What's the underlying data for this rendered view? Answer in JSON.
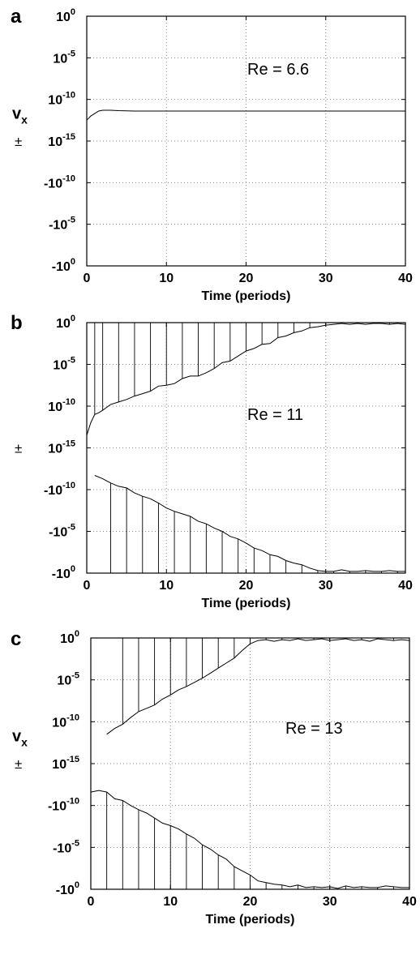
{
  "chart_data": [
    {
      "panel": "a",
      "type": "line",
      "annotation": "Re = 6.6",
      "ylabel": "v",
      "ylabel_sub": "x",
      "ylabel_pm": "±",
      "xlabel": "Time (periods)",
      "xlim": [
        0,
        40
      ],
      "xticks": [
        "0",
        "10",
        "20",
        "30",
        "40"
      ],
      "yticks": [
        {
          "base": "10",
          "exp": "0"
        },
        {
          "base": "10",
          "exp": "-5"
        },
        {
          "base": "10",
          "exp": "-10"
        },
        {
          "base": "10",
          "exp": "-15"
        },
        {
          "base": "-10",
          "exp": "-10"
        },
        {
          "base": "-10",
          "exp": "-5"
        },
        {
          "base": "-10",
          "exp": "0"
        }
      ],
      "grid": true,
      "series": [
        {
          "x": [
            0,
            0.5,
            1,
            1.5,
            2,
            3,
            4,
            6,
            8,
            10,
            15,
            20,
            25,
            30,
            35,
            40
          ],
          "y": [
            -12.5,
            -12,
            -11.7,
            -11.4,
            -11.3,
            -11.3,
            -11.35,
            -11.4,
            -11.4,
            -11.4,
            -11.4,
            -11.4,
            -11.4,
            -11.4,
            -11.4,
            -11.4
          ]
        }
      ]
    },
    {
      "panel": "b",
      "type": "line",
      "annotation": "Re = 11",
      "ylabel": "",
      "ylabel_sub": "",
      "ylabel_pm": "±",
      "xlabel": "Time (periods)",
      "xlim": [
        0,
        40
      ],
      "xticks": [
        "0",
        "10",
        "20",
        "30",
        "40"
      ],
      "yticks": [
        {
          "base": "10",
          "exp": "0"
        },
        {
          "base": "10",
          "exp": "-5"
        },
        {
          "base": "10",
          "exp": "-10"
        },
        {
          "base": "10",
          "exp": "-15"
        },
        {
          "base": "-10",
          "exp": "-10"
        },
        {
          "base": "-10",
          "exp": "-5"
        },
        {
          "base": "-10",
          "exp": "0"
        }
      ],
      "grid": true,
      "series": [
        {
          "x": [
            0,
            0.5,
            1,
            1.5,
            2,
            3,
            4,
            5,
            6,
            7,
            8,
            9,
            10,
            11,
            12,
            13,
            14,
            15,
            16,
            17,
            18,
            19,
            20,
            21,
            22,
            23,
            24,
            25,
            26,
            27,
            28,
            29,
            30,
            31,
            32,
            33,
            34,
            35,
            36,
            37,
            38,
            39,
            40
          ],
          "y": [
            -13.5,
            -12,
            -11,
            -10.8,
            -10.5,
            -9.8,
            -9.5,
            -9.2,
            -8.8,
            -8.5,
            -8.2,
            -7.6,
            -7.5,
            -7.3,
            -6.7,
            -6.4,
            -6.4,
            -6.0,
            -5.5,
            -4.8,
            -4.6,
            -4.0,
            -3.4,
            -3.1,
            -2.6,
            -2.5,
            -1.8,
            -1.6,
            -1.2,
            -1.0,
            -0.6,
            -0.5,
            -0.3,
            -0.2,
            -0.1,
            -0.2,
            -0.1,
            -0.2,
            -0.1,
            -0.1,
            -0.2,
            -0.1,
            -0.2
          ]
        },
        {
          "x": [
            1,
            2,
            3,
            4,
            5,
            6,
            7,
            8,
            9,
            10,
            11,
            12,
            13,
            14,
            15,
            16,
            17,
            18,
            19,
            20,
            21,
            22,
            23,
            24,
            25,
            26,
            27,
            28,
            29,
            30,
            31,
            32,
            33,
            34,
            35,
            36,
            37,
            38,
            39,
            40
          ],
          "y": [
            11.7,
            11.3,
            10.8,
            10.4,
            10.2,
            9.6,
            9.2,
            8.9,
            8.4,
            7.8,
            7.4,
            7.1,
            6.8,
            6.2,
            5.9,
            5.4,
            5.0,
            4.4,
            4.1,
            3.6,
            3.0,
            2.7,
            2.2,
            2.0,
            1.5,
            1.2,
            1.0,
            0.6,
            0.3,
            0.2,
            0.2,
            0.4,
            0.2,
            0.2,
            0.3,
            0.2,
            0.2,
            0.3,
            0.2,
            0.2
          ]
        }
      ]
    },
    {
      "panel": "c",
      "type": "line",
      "annotation": "Re = 13",
      "ylabel": "v",
      "ylabel_sub": "x",
      "ylabel_pm": "±",
      "xlabel": "Time (periods)",
      "xlim": [
        0,
        40
      ],
      "xticks": [
        "0",
        "10",
        "20",
        "30",
        "40"
      ],
      "yticks": [
        {
          "base": "10",
          "exp": "0"
        },
        {
          "base": "10",
          "exp": "-5"
        },
        {
          "base": "10",
          "exp": "-10"
        },
        {
          "base": "10",
          "exp": "-15"
        },
        {
          "base": "-10",
          "exp": "-10"
        },
        {
          "base": "-10",
          "exp": "-5"
        },
        {
          "base": "-10",
          "exp": "0"
        }
      ],
      "grid": true,
      "series": [
        {
          "x": [
            2,
            3,
            4,
            5,
            6,
            7,
            8,
            9,
            10,
            11,
            12,
            13,
            14,
            15,
            16,
            17,
            18,
            19,
            20,
            21,
            22,
            23,
            24,
            25,
            26,
            27,
            28,
            29,
            30,
            31,
            32,
            33,
            34,
            35,
            36,
            37,
            38,
            39,
            40
          ],
          "y": [
            -11.5,
            -10.8,
            -10.3,
            -9.5,
            -8.8,
            -8.4,
            -8.0,
            -7.3,
            -6.8,
            -6.2,
            -5.8,
            -5.3,
            -4.8,
            -4.2,
            -3.6,
            -3.0,
            -2.4,
            -1.5,
            -0.7,
            -0.3,
            -0.2,
            -0.4,
            -0.2,
            -0.3,
            -0.1,
            -0.3,
            -0.2,
            -0.1,
            -0.3,
            -0.2,
            -0.1,
            -0.3,
            -0.2,
            -0.4,
            -0.1,
            -0.2,
            -0.3,
            -0.2,
            -0.3
          ]
        },
        {
          "x": [
            0,
            1,
            2,
            3,
            4,
            5,
            6,
            7,
            8,
            9,
            10,
            11,
            12,
            13,
            14,
            15,
            16,
            17,
            18,
            19,
            20,
            21,
            22,
            23,
            24,
            25,
            26,
            27,
            28,
            29,
            30,
            31,
            32,
            33,
            34,
            35,
            36,
            37,
            38,
            39,
            40
          ],
          "y": [
            11.6,
            11.8,
            11.6,
            10.8,
            10.6,
            10.0,
            9.5,
            9.1,
            8.5,
            7.9,
            7.6,
            7.2,
            6.6,
            6.1,
            5.3,
            4.8,
            4.1,
            3.6,
            2.7,
            2.2,
            1.7,
            1.0,
            0.8,
            0.6,
            0.5,
            0.3,
            0.5,
            0.2,
            0.3,
            0.2,
            0.3,
            0.1,
            0.4,
            0.2,
            0.3,
            0.2,
            0.2,
            0.4,
            0.3,
            0.2,
            0.2
          ]
        }
      ]
    }
  ]
}
